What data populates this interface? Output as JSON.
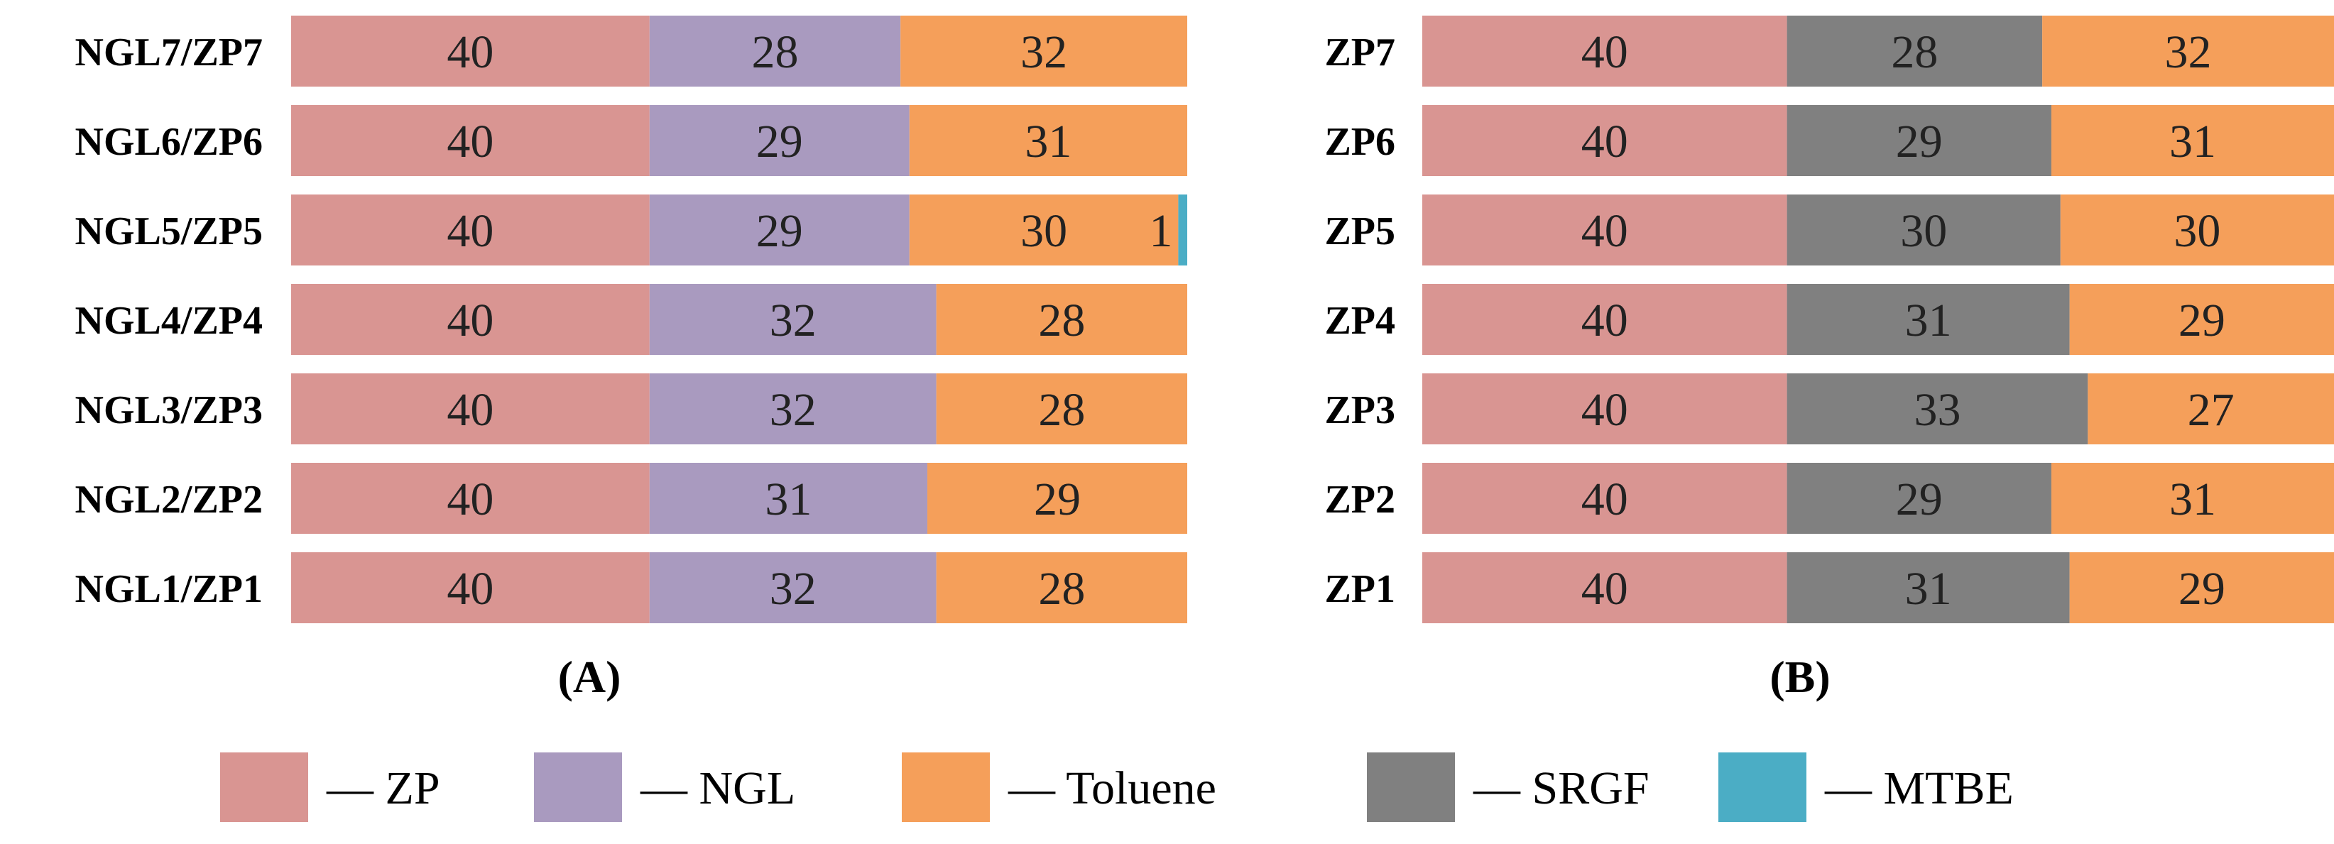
{
  "colors": {
    "ZP": "#d99592",
    "NGL": "#a99abf",
    "Toluene": "#f59f5a",
    "SRGF": "#808080",
    "MTBE": "#4badc5"
  },
  "legend": [
    {
      "key": "ZP",
      "label": "— ZP"
    },
    {
      "key": "NGL",
      "label": "— NGL"
    },
    {
      "key": "Toluene",
      "label": "— Toluene"
    },
    {
      "key": "SRGF",
      "label": "— SRGF"
    },
    {
      "key": "MTBE",
      "label": "— MTBE"
    }
  ],
  "chart_data": [
    {
      "type": "bar",
      "orientation": "horizontal",
      "stacked": true,
      "title": "(A)",
      "categories": [
        "NGL7/ZP7",
        "NGL6/ZP6",
        "NGL5/ZP5",
        "NGL4/ZP4",
        "NGL3/ZP3",
        "NGL2/ZP2",
        "NGL1/ZP1"
      ],
      "series": [
        {
          "name": "ZP",
          "values": [
            40,
            40,
            40,
            40,
            40,
            40,
            40
          ]
        },
        {
          "name": "NGL",
          "values": [
            28,
            29,
            29,
            32,
            32,
            31,
            32
          ]
        },
        {
          "name": "Toluene",
          "values": [
            32,
            31,
            30,
            28,
            28,
            29,
            28
          ]
        },
        {
          "name": "MTBE",
          "values": [
            0,
            0,
            1,
            0,
            0,
            0,
            0
          ]
        }
      ],
      "xlim": [
        0,
        100
      ],
      "grid": false
    },
    {
      "type": "bar",
      "orientation": "horizontal",
      "stacked": true,
      "title": "(B)",
      "categories": [
        "ZP7",
        "ZP6",
        "ZP5",
        "ZP4",
        "ZP3",
        "ZP2",
        "ZP1"
      ],
      "series": [
        {
          "name": "ZP",
          "values": [
            40,
            40,
            40,
            40,
            40,
            40,
            40
          ]
        },
        {
          "name": "SRGF",
          "values": [
            28,
            29,
            30,
            31,
            33,
            29,
            31
          ]
        },
        {
          "name": "Toluene",
          "values": [
            32,
            31,
            30,
            29,
            27,
            31,
            29
          ]
        }
      ],
      "xlim": [
        0,
        100
      ],
      "grid": false
    }
  ]
}
